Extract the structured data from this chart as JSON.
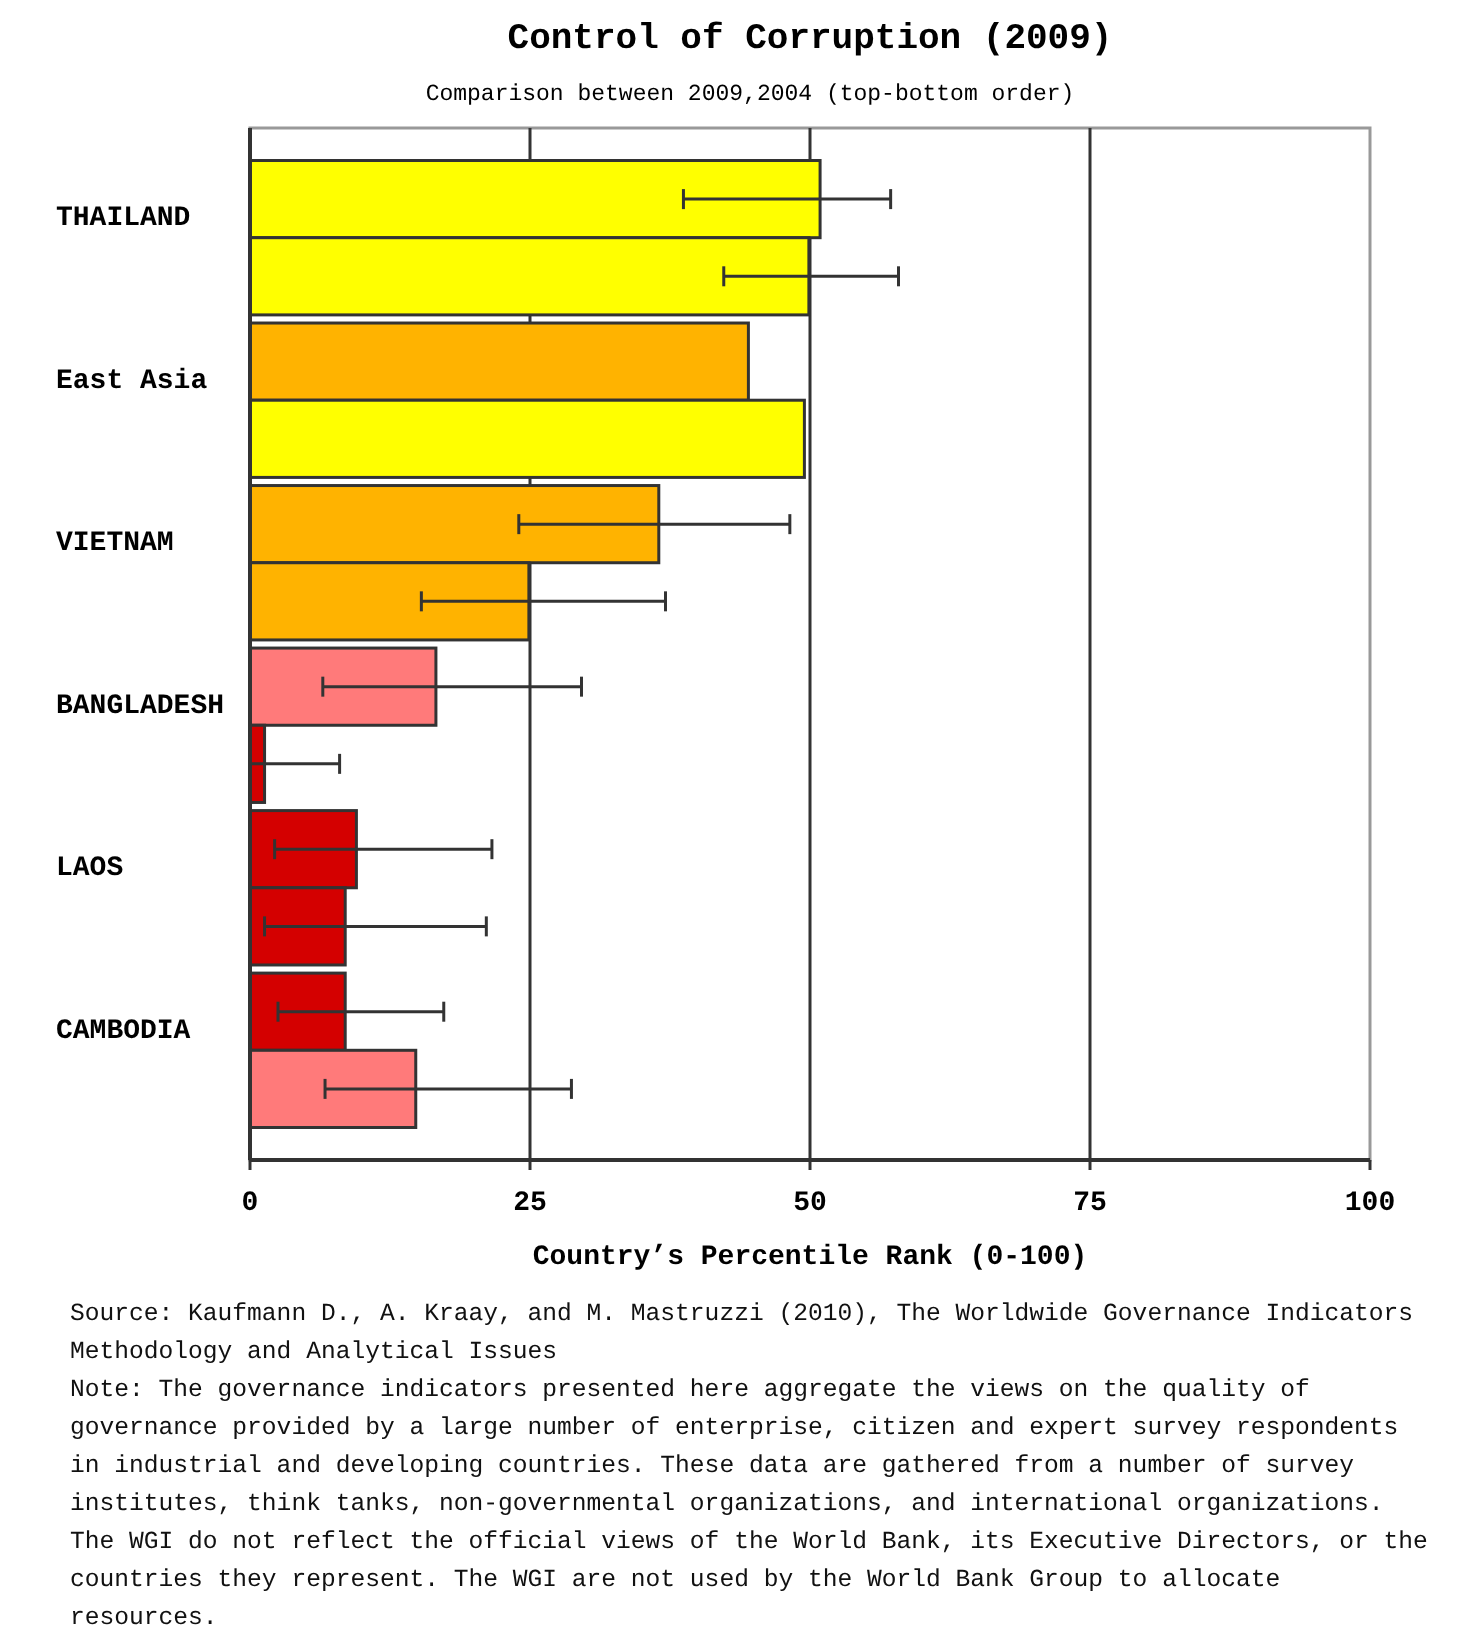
{
  "chart_data": {
    "type": "bar",
    "orientation": "horizontal",
    "title": "Control of Corruption (2009)",
    "subtitle": "Comparison between 2009,2004 (top-bottom order)",
    "xlabel": "Country’s Percentile Rank (0-100)",
    "categories": [
      "THAILAND",
      "East Asia",
      "VIETNAM",
      "BANGLADESH",
      "LAOS",
      "CAMBODIA"
    ],
    "series": [
      {
        "values": [
          50.9,
          44.5,
          36.5,
          16.6,
          9.5,
          8.5
        ],
        "colors": [
          "#ffff00",
          "#ffb300",
          "#ffb300",
          "#ff7a7a",
          "#d40000",
          "#d40000"
        ],
        "errors": [
          [
            38.7,
            57.2
          ],
          null,
          [
            24.0,
            48.2
          ],
          [
            6.5,
            29.6
          ],
          [
            2.2,
            21.6
          ],
          [
            2.5,
            17.3
          ]
        ]
      },
      {
        "values": [
          49.9,
          49.5,
          24.9,
          1.3,
          8.5,
          14.8
        ],
        "colors": [
          "#ffff00",
          "#ffff00",
          "#ffb300",
          "#d40000",
          "#d40000",
          "#ff7a7a"
        ],
        "errors": [
          [
            42.3,
            57.9
          ],
          null,
          [
            15.3,
            37.1
          ],
          [
            0,
            8.0
          ],
          [
            1.3,
            21.1
          ],
          [
            6.7,
            28.7
          ]
        ]
      }
    ],
    "xlim": [
      0,
      100
    ],
    "xticks": [
      0,
      25,
      50,
      75,
      100
    ],
    "grid": "x",
    "annotations": [
      "Source: Kaufmann D., A. Kraay, and M. Mastruzzi (2010), The Worldwide Governance Indicators Methodology and Analytical Issues",
      "Note: The governance indicators presented here aggregate the views on the quality of governance provided by a large number of enterprise, citizen and expert survey respondents in industrial and developing countries. These data are gathered from a number of survey institutes, think tanks, non-governmental organizations, and international organizations. The WGI do not reflect the official views of the World Bank, its Executive Directors, or the countries they represent. The WGI are not used by the World Bank Group to allocate resources."
    ]
  }
}
